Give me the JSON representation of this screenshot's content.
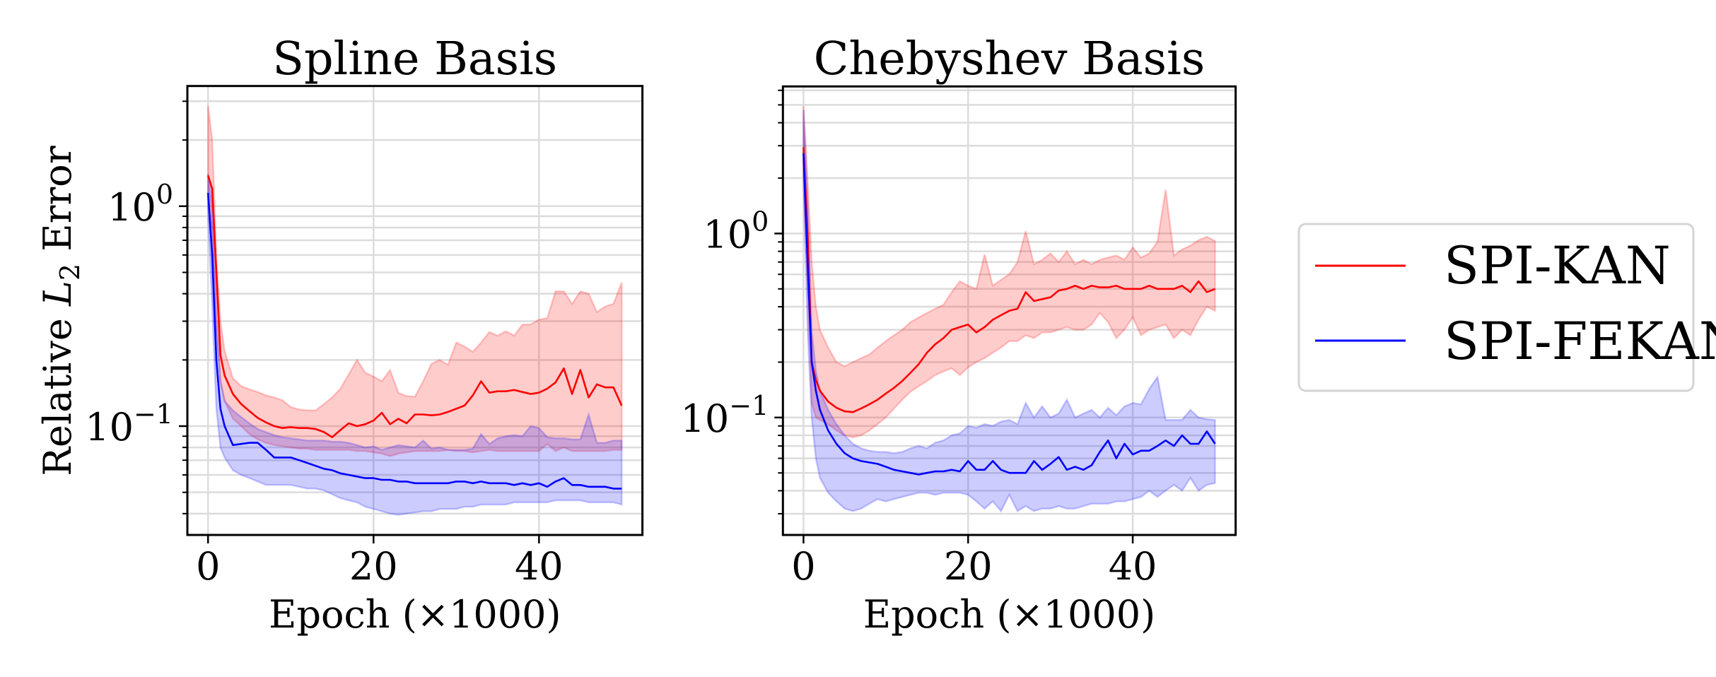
{
  "legend": {
    "placement": "right",
    "entries": [
      {
        "label": "SPI-KAN",
        "color": "#ff0000"
      },
      {
        "label": "SPI-FEKAN",
        "color": "#0000ff"
      }
    ]
  },
  "chart_data": [
    {
      "type": "line",
      "title": "Spline Basis",
      "xlabel": "Epoch (×1000)",
      "ylabel": {
        "prefix": "Relative ",
        "var": "L",
        "sub": "2",
        "suffix": " Error"
      },
      "yscale": "log",
      "xlim": [
        -2.5,
        52.5
      ],
      "ylim": [
        0.032,
        3.52
      ],
      "grid": true,
      "xticks": [
        {
          "value": 0,
          "label": "0"
        },
        {
          "value": 20,
          "label": "20"
        },
        {
          "value": 40,
          "label": "40"
        }
      ],
      "yticks": [
        {
          "value": 1,
          "base": "10",
          "exp": "0"
        },
        {
          "value": 0.1,
          "base": "10",
          "exp": "−1"
        }
      ],
      "x": [
        0,
        0.5,
        1,
        1.5,
        2,
        3,
        4,
        5,
        6,
        7,
        8,
        9,
        10,
        11,
        12,
        13,
        14,
        15,
        16,
        17,
        18,
        19,
        20,
        21,
        22,
        23,
        24,
        25,
        26,
        27,
        28,
        29,
        30,
        31,
        32,
        33,
        34,
        35,
        36,
        37,
        38,
        39,
        40,
        41,
        42,
        43,
        44,
        45,
        46,
        47,
        48,
        49,
        50
      ],
      "series": [
        {
          "name": "SPI-KAN",
          "color": "#ff0000",
          "mean": [
            1.38,
            1.2,
            0.5,
            0.21,
            0.17,
            0.14,
            0.126,
            0.117,
            0.109,
            0.104,
            0.1,
            0.098,
            0.099,
            0.098,
            0.098,
            0.097,
            0.094,
            0.089,
            0.096,
            0.103,
            0.1,
            0.102,
            0.106,
            0.115,
            0.102,
            0.108,
            0.103,
            0.113,
            0.113,
            0.112,
            0.113,
            0.116,
            0.12,
            0.124,
            0.138,
            0.16,
            0.142,
            0.144,
            0.144,
            0.146,
            0.143,
            0.14,
            0.142,
            0.148,
            0.158,
            0.183,
            0.14,
            0.18,
            0.135,
            0.155,
            0.15,
            0.15,
            0.124
          ],
          "upper": [
            2.86,
            2.0,
            0.6,
            0.3,
            0.22,
            0.165,
            0.152,
            0.147,
            0.143,
            0.138,
            0.135,
            0.131,
            0.122,
            0.119,
            0.118,
            0.118,
            0.126,
            0.135,
            0.148,
            0.172,
            0.2,
            0.175,
            0.168,
            0.16,
            0.18,
            0.142,
            0.137,
            0.136,
            0.16,
            0.192,
            0.2,
            0.19,
            0.24,
            0.23,
            0.218,
            0.24,
            0.268,
            0.258,
            0.27,
            0.258,
            0.29,
            0.29,
            0.305,
            0.31,
            0.41,
            0.41,
            0.36,
            0.41,
            0.4,
            0.33,
            0.35,
            0.36,
            0.45
          ],
          "lower": [
            1.0,
            0.8,
            0.3,
            0.16,
            0.13,
            0.108,
            0.1,
            0.092,
            0.087,
            0.084,
            0.082,
            0.081,
            0.08,
            0.079,
            0.079,
            0.078,
            0.078,
            0.078,
            0.078,
            0.078,
            0.077,
            0.077,
            0.076,
            0.075,
            0.073,
            0.075,
            0.076,
            0.077,
            0.077,
            0.077,
            0.077,
            0.078,
            0.077,
            0.077,
            0.076,
            0.077,
            0.078,
            0.077,
            0.077,
            0.077,
            0.077,
            0.077,
            0.077,
            0.083,
            0.077,
            0.08,
            0.077,
            0.077,
            0.077,
            0.077,
            0.077,
            0.078,
            0.078
          ]
        },
        {
          "name": "SPI-FEKAN",
          "color": "#0000ff",
          "mean": [
            1.15,
            0.6,
            0.2,
            0.12,
            0.1,
            0.082,
            0.083,
            0.084,
            0.084,
            0.078,
            0.072,
            0.072,
            0.072,
            0.07,
            0.068,
            0.066,
            0.064,
            0.063,
            0.061,
            0.06,
            0.059,
            0.058,
            0.058,
            0.057,
            0.057,
            0.056,
            0.056,
            0.055,
            0.055,
            0.055,
            0.055,
            0.055,
            0.056,
            0.056,
            0.055,
            0.056,
            0.055,
            0.055,
            0.055,
            0.054,
            0.055,
            0.054,
            0.055,
            0.053,
            0.056,
            0.058,
            0.054,
            0.054,
            0.053,
            0.053,
            0.053,
            0.052,
            0.052
          ],
          "upper": [
            1.4,
            1.0,
            0.3,
            0.16,
            0.13,
            0.118,
            0.11,
            0.103,
            0.097,
            0.094,
            0.091,
            0.089,
            0.088,
            0.087,
            0.086,
            0.086,
            0.086,
            0.085,
            0.085,
            0.084,
            0.082,
            0.08,
            0.081,
            0.078,
            0.08,
            0.082,
            0.081,
            0.08,
            0.086,
            0.079,
            0.08,
            0.078,
            0.078,
            0.078,
            0.079,
            0.092,
            0.083,
            0.088,
            0.09,
            0.091,
            0.09,
            0.1,
            0.098,
            0.089,
            0.088,
            0.088,
            0.087,
            0.087,
            0.113,
            0.084,
            0.084,
            0.086,
            0.086
          ],
          "lower": [
            0.9,
            0.35,
            0.12,
            0.08,
            0.072,
            0.063,
            0.06,
            0.058,
            0.056,
            0.054,
            0.054,
            0.054,
            0.054,
            0.053,
            0.052,
            0.052,
            0.051,
            0.049,
            0.047,
            0.046,
            0.045,
            0.043,
            0.042,
            0.041,
            0.04,
            0.0395,
            0.04,
            0.0405,
            0.041,
            0.041,
            0.042,
            0.042,
            0.042,
            0.043,
            0.043,
            0.044,
            0.044,
            0.044,
            0.044,
            0.045,
            0.045,
            0.045,
            0.045,
            0.045,
            0.046,
            0.046,
            0.046,
            0.046,
            0.045,
            0.045,
            0.045,
            0.045,
            0.044
          ]
        }
      ]
    },
    {
      "type": "line",
      "title": "Chebyshev Basis",
      "xlabel": "Epoch (×1000)",
      "yscale": "log",
      "xlim": [
        -2.5,
        52.5
      ],
      "ylim": [
        0.023,
        6.3
      ],
      "grid": true,
      "xticks": [
        {
          "value": 0,
          "label": "0"
        },
        {
          "value": 20,
          "label": "20"
        },
        {
          "value": 40,
          "label": "40"
        }
      ],
      "yticks": [
        {
          "value": 1,
          "base": "10",
          "exp": "0"
        },
        {
          "value": 0.1,
          "base": "10",
          "exp": "−1"
        }
      ],
      "x": [
        0,
        0.5,
        1,
        1.5,
        2,
        3,
        4,
        5,
        6,
        7,
        8,
        9,
        10,
        11,
        12,
        13,
        14,
        15,
        16,
        17,
        18,
        19,
        20,
        21,
        22,
        23,
        24,
        25,
        26,
        27,
        28,
        29,
        30,
        31,
        32,
        33,
        34,
        35,
        36,
        37,
        38,
        39,
        40,
        41,
        42,
        43,
        44,
        45,
        46,
        47,
        48,
        49,
        50
      ],
      "series": [
        {
          "name": "SPI-KAN",
          "color": "#ff0000",
          "mean": [
            2.94,
            1.0,
            0.2,
            0.16,
            0.14,
            0.122,
            0.113,
            0.108,
            0.107,
            0.112,
            0.118,
            0.125,
            0.135,
            0.145,
            0.158,
            0.175,
            0.195,
            0.225,
            0.25,
            0.27,
            0.3,
            0.31,
            0.32,
            0.29,
            0.31,
            0.34,
            0.36,
            0.38,
            0.39,
            0.48,
            0.43,
            0.44,
            0.45,
            0.49,
            0.5,
            0.52,
            0.5,
            0.52,
            0.51,
            0.51,
            0.52,
            0.5,
            0.5,
            0.5,
            0.52,
            0.5,
            0.5,
            0.5,
            0.52,
            0.48,
            0.55,
            0.48,
            0.5
          ],
          "upper": [
            4.93,
            2.0,
            0.7,
            0.4,
            0.3,
            0.24,
            0.2,
            0.19,
            0.2,
            0.21,
            0.22,
            0.24,
            0.26,
            0.28,
            0.3,
            0.33,
            0.35,
            0.37,
            0.39,
            0.41,
            0.48,
            0.55,
            0.52,
            0.5,
            0.77,
            0.52,
            0.56,
            0.6,
            0.7,
            1.03,
            0.68,
            0.72,
            0.78,
            0.7,
            0.8,
            0.68,
            0.72,
            0.68,
            0.72,
            0.74,
            0.76,
            0.72,
            0.84,
            0.74,
            0.78,
            0.9,
            1.73,
            0.76,
            0.82,
            0.86,
            0.92,
            0.96,
            0.91
          ],
          "lower": [
            2.0,
            0.5,
            0.12,
            0.1,
            0.097,
            0.092,
            0.085,
            0.08,
            0.078,
            0.08,
            0.085,
            0.092,
            0.1,
            0.112,
            0.125,
            0.138,
            0.148,
            0.158,
            0.17,
            0.178,
            0.185,
            0.17,
            0.187,
            0.2,
            0.21,
            0.225,
            0.24,
            0.26,
            0.26,
            0.28,
            0.27,
            0.29,
            0.29,
            0.3,
            0.31,
            0.3,
            0.3,
            0.32,
            0.37,
            0.33,
            0.27,
            0.3,
            0.35,
            0.28,
            0.3,
            0.31,
            0.32,
            0.27,
            0.3,
            0.28,
            0.34,
            0.4,
            0.38
          ]
        },
        {
          "name": "SPI-FEKAN",
          "color": "#0000ff",
          "mean": [
            2.73,
            0.7,
            0.2,
            0.14,
            0.11,
            0.085,
            0.072,
            0.064,
            0.06,
            0.058,
            0.057,
            0.056,
            0.054,
            0.052,
            0.051,
            0.05,
            0.049,
            0.05,
            0.051,
            0.051,
            0.052,
            0.051,
            0.058,
            0.052,
            0.052,
            0.058,
            0.052,
            0.05,
            0.05,
            0.05,
            0.058,
            0.052,
            0.056,
            0.061,
            0.052,
            0.054,
            0.052,
            0.055,
            0.065,
            0.075,
            0.06,
            0.072,
            0.063,
            0.066,
            0.066,
            0.07,
            0.075,
            0.07,
            0.08,
            0.072,
            0.072,
            0.084,
            0.072
          ],
          "upper": [
            4.7,
            1.5,
            0.3,
            0.18,
            0.14,
            0.11,
            0.092,
            0.08,
            0.072,
            0.068,
            0.066,
            0.065,
            0.065,
            0.064,
            0.065,
            0.068,
            0.07,
            0.068,
            0.073,
            0.075,
            0.08,
            0.082,
            0.09,
            0.088,
            0.092,
            0.09,
            0.095,
            0.097,
            0.092,
            0.12,
            0.1,
            0.115,
            0.1,
            0.105,
            0.125,
            0.1,
            0.105,
            0.11,
            0.1,
            0.113,
            0.103,
            0.115,
            0.12,
            0.118,
            0.143,
            0.166,
            0.097,
            0.097,
            0.097,
            0.11,
            0.1,
            0.098,
            0.097
          ],
          "lower": [
            2.0,
            0.3,
            0.1,
            0.06,
            0.047,
            0.039,
            0.035,
            0.032,
            0.031,
            0.032,
            0.034,
            0.036,
            0.035,
            0.036,
            0.037,
            0.038,
            0.039,
            0.039,
            0.038,
            0.039,
            0.039,
            0.039,
            0.038,
            0.035,
            0.032,
            0.035,
            0.031,
            0.038,
            0.031,
            0.033,
            0.031,
            0.032,
            0.032,
            0.033,
            0.032,
            0.032,
            0.033,
            0.034,
            0.034,
            0.034,
            0.035,
            0.035,
            0.036,
            0.037,
            0.04,
            0.037,
            0.04,
            0.043,
            0.04,
            0.047,
            0.04,
            0.043,
            0.044
          ]
        }
      ]
    }
  ]
}
